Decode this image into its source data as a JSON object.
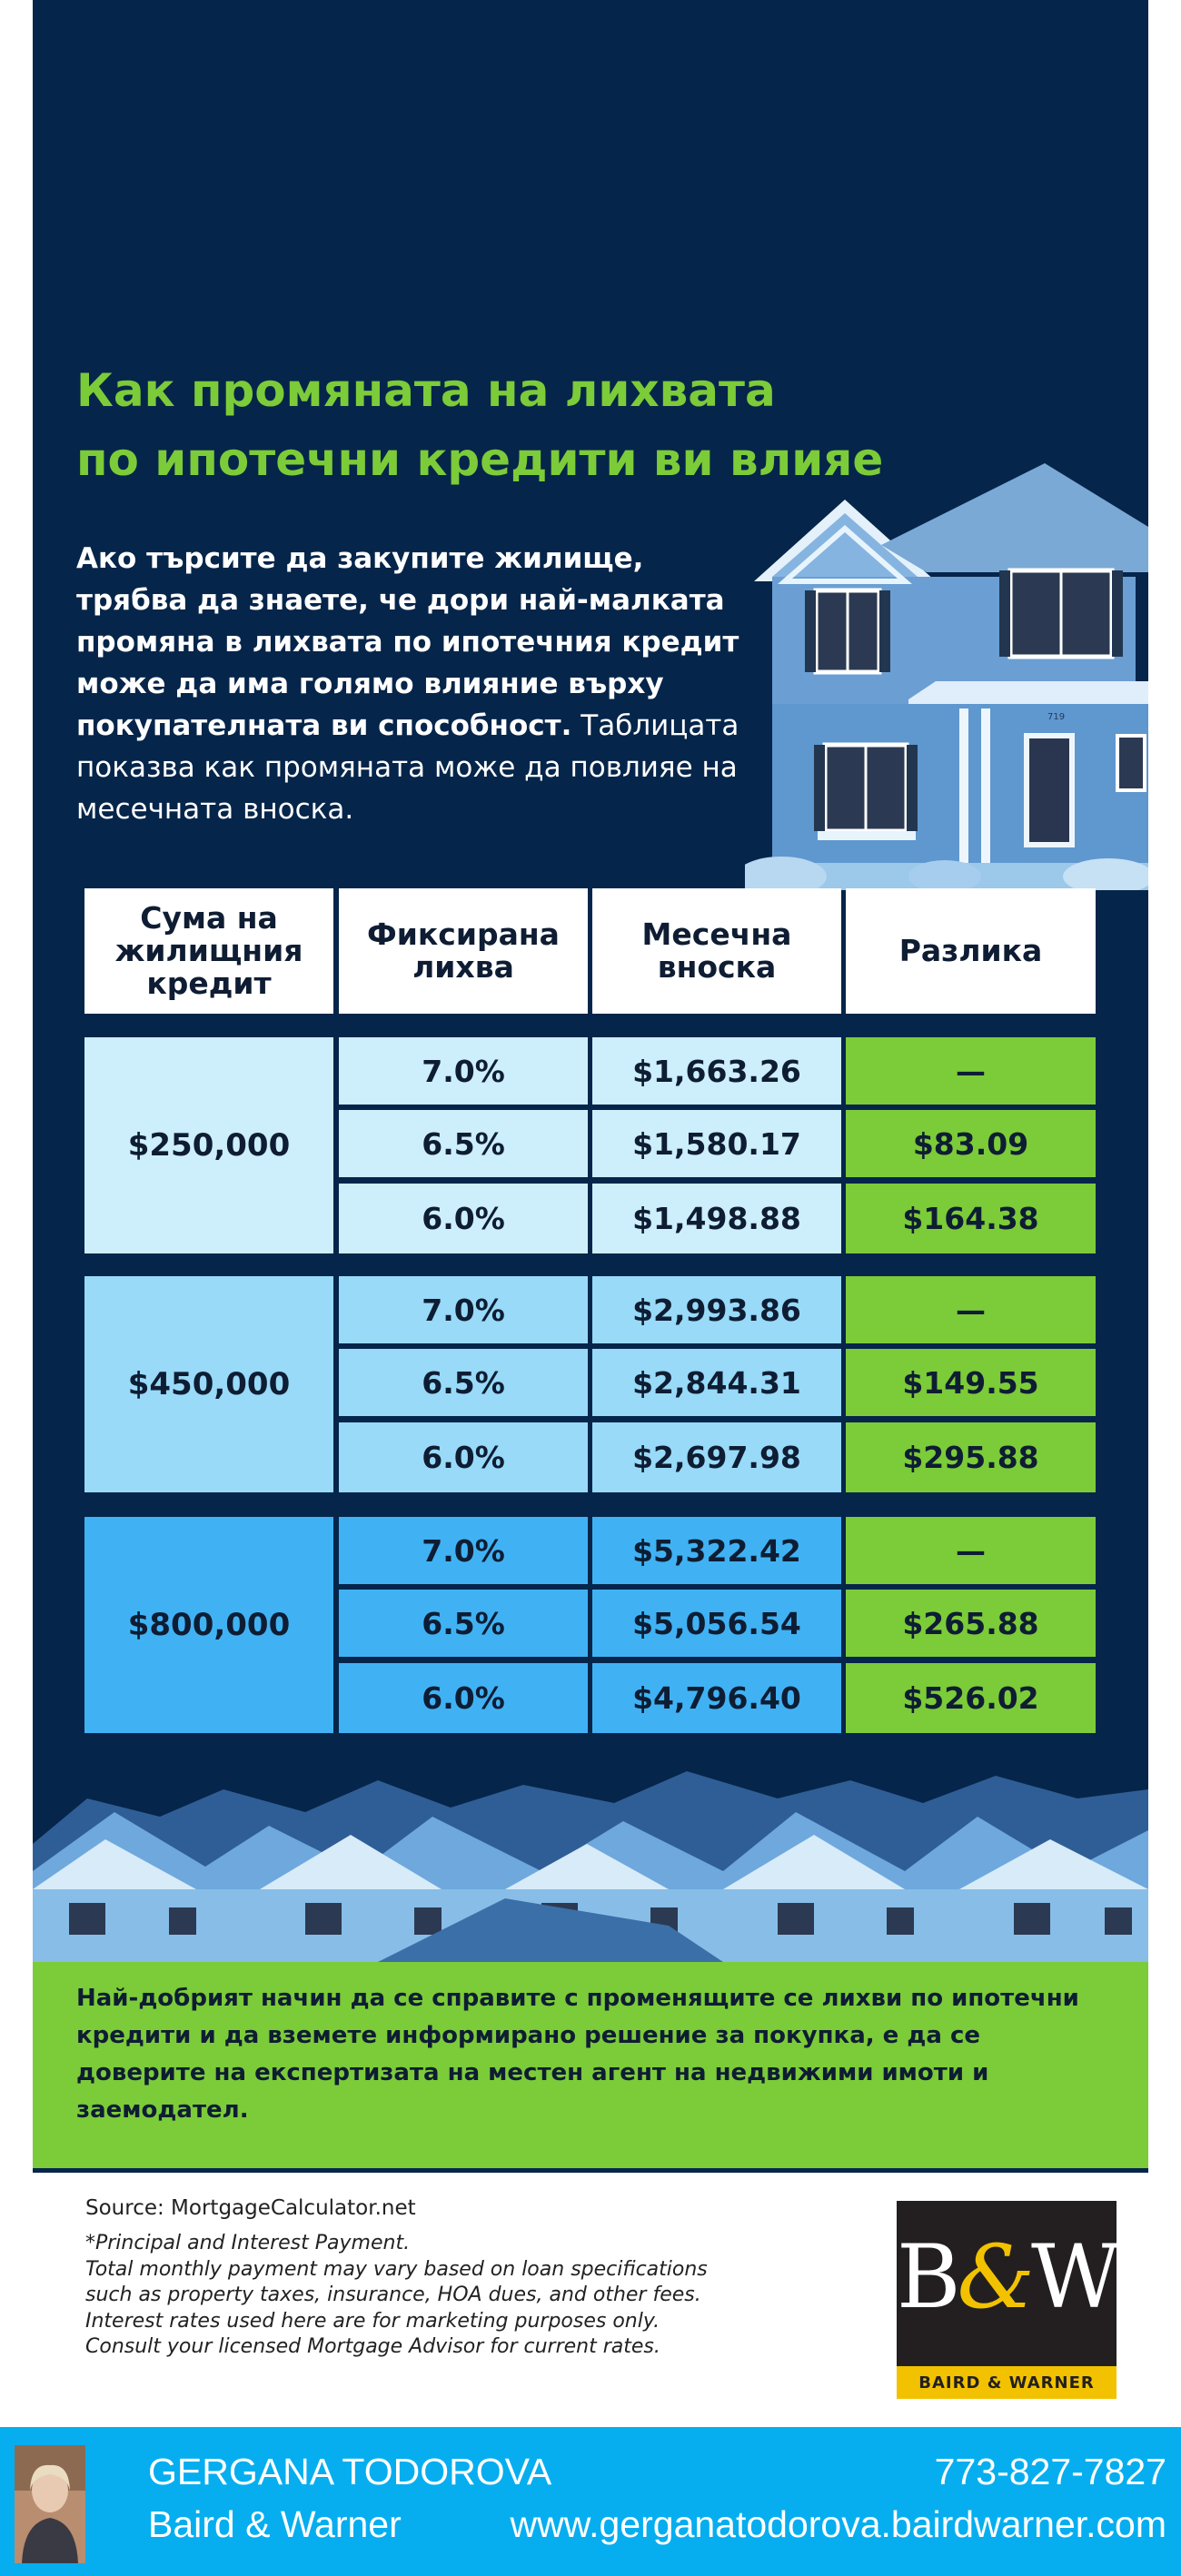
{
  "title": {
    "line1": "Как промяната на лихвата",
    "line2": "по ипотечни кредити ви влияе"
  },
  "intro": {
    "bold": "Ако търсите да закупите жилище, трябва да знаете, че дори най-малката промяна в лихвата по ипотечния кредит може да има голямо влияние върху покупателната ви способност.",
    "regular": "Таблицата показва как промяната може да повлияе на месечната вноска."
  },
  "house_number": "719",
  "table": {
    "headers": [
      "Сума на жилищния кредит",
      "Фиксирана лихва",
      "Месечна вноска",
      "Разлика"
    ],
    "groups": [
      {
        "amount": "$250,000",
        "color": "#cdeefb",
        "rows": [
          {
            "rate": "7.0%",
            "payment": "$1,663.26",
            "diff": "—"
          },
          {
            "rate": "6.5%",
            "payment": "$1,580.17",
            "diff": "$83.09"
          },
          {
            "rate": "6.0%",
            "payment": "$1,498.88",
            "diff": "$164.38"
          }
        ]
      },
      {
        "amount": "$450,000",
        "color": "#98daf8",
        "rows": [
          {
            "rate": "7.0%",
            "payment": "$2,993.86",
            "diff": "—"
          },
          {
            "rate": "6.5%",
            "payment": "$2,844.31",
            "diff": "$149.55"
          },
          {
            "rate": "6.0%",
            "payment": "$2,697.98",
            "diff": "$295.88"
          }
        ]
      },
      {
        "amount": "$800,000",
        "color": "#40b2f4",
        "rows": [
          {
            "rate": "7.0%",
            "payment": "$5,322.42",
            "diff": "—"
          },
          {
            "rate": "6.5%",
            "payment": "$5,056.54",
            "diff": "$265.88"
          },
          {
            "rate": "6.0%",
            "payment": "$4,796.40",
            "diff": "$526.02"
          }
        ]
      }
    ]
  },
  "advice": "Най-добрият начин да се справите с променящите се лихви по ипотечни кредити и да вземете информирано решение за покупка, е да се доверите на експертизата на местен агент на недвижими имоти и заемодател.",
  "source": "Source: MortgageCalculator.net",
  "disclaimer": {
    "line1": "*Principal and Interest Payment.",
    "line2": "Total monthly payment may vary based on loan specifications",
    "line3": "such as property taxes, insurance, HOA dues, and other fees.",
    "line4": "Interest rates used here are for marketing purposes only.",
    "line5": "Consult your licensed Mortgage Advisor for current rates."
  },
  "logo": {
    "b": "B",
    "amp": "&",
    "w": "W",
    "tagline": "BAIRD & WARNER"
  },
  "footer": {
    "name": "GERGANA TODOROVA",
    "company": "Baird & Warner",
    "phone": "773-827-7827",
    "website": "www.gergana­todorova.bairdwarner.com"
  },
  "colors": {
    "navy": "#06254a",
    "green": "#7ccb39",
    "footer_blue": "#06aeef"
  }
}
